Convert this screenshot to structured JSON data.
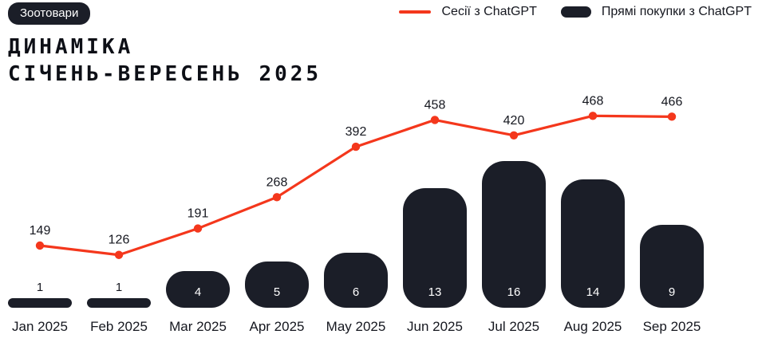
{
  "badge": {
    "label": "Зоотовари"
  },
  "title": {
    "line1": "ДИНАМІКА",
    "line2": "СІЧЕНЬ-ВЕРЕСЕНЬ 2025"
  },
  "legend": [
    {
      "label": "Сесії з ChatGPT",
      "swatch": "line",
      "color": "#f4371c"
    },
    {
      "label": "Прямі покупки з ChatGPT",
      "swatch": "pill",
      "color": "#1b1e28"
    }
  ],
  "colors": {
    "accent_red": "#f4371c",
    "dark": "#1b1e28",
    "text": "#15171f",
    "background": "#ffffff"
  },
  "chart_data": {
    "type": "line+bar",
    "title": "ДИНАМІКА СІЧЕНЬ-ВЕРЕСЕНЬ 2025",
    "categories": [
      "Jan 2025",
      "Feb 2025",
      "Mar 2025",
      "Apr 2025",
      "May 2025",
      "Jun 2025",
      "Jul 2025",
      "Aug 2025",
      "Sep 2025"
    ],
    "series": [
      {
        "name": "Сесії з ChatGPT",
        "type": "line",
        "color": "#f4371c",
        "values": [
          149,
          126,
          191,
          268,
          392,
          458,
          420,
          468,
          466
        ]
      },
      {
        "name": "Прямі покупки з ChatGPT",
        "type": "bar",
        "color": "#1b1e28",
        "values": [
          1,
          1,
          4,
          5,
          6,
          13,
          16,
          14,
          9
        ]
      }
    ],
    "data_labels": true,
    "grid": false,
    "legend_position": "top-right",
    "x_axis": "months",
    "ylim_line": [
      0,
      500
    ],
    "ylim_bar": [
      0,
      16
    ]
  }
}
